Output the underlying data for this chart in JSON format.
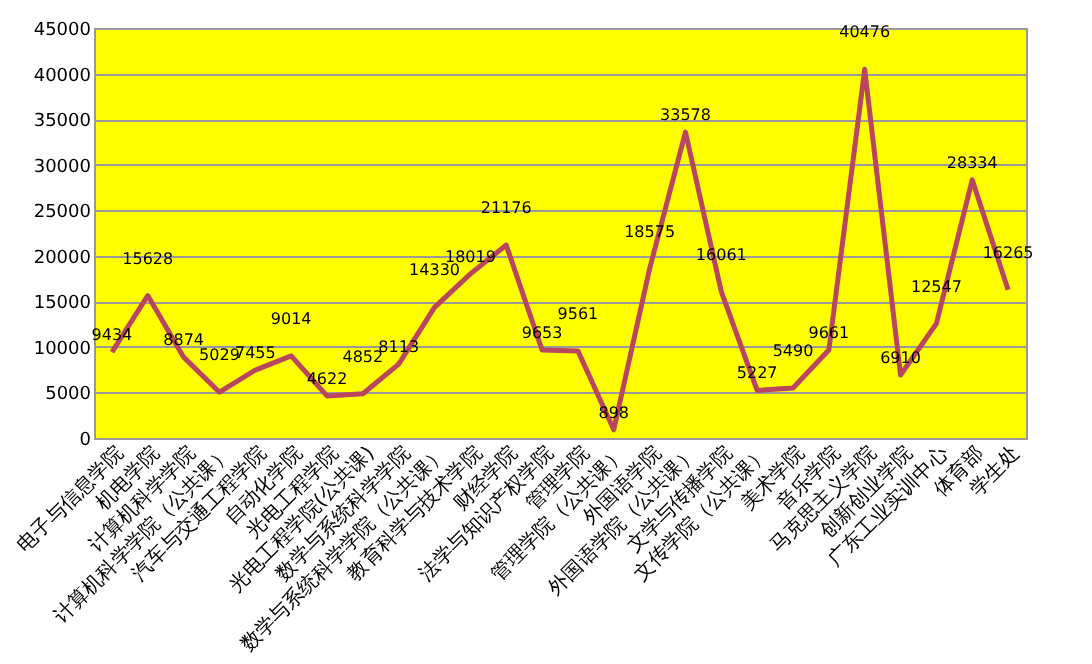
{
  "chart_data": {
    "type": "line",
    "categories": [
      "电子与信息学院",
      "机电学院",
      "计算机科学学院",
      "计算机科学学院（公共课）",
      "汽车与交通工程学院",
      "自动化学院",
      "光电工程学院",
      "光电工程学院(公共课)",
      "数学与系统科学学院",
      "数学与系统科学学院（公共课）",
      "教育科学与技术学院",
      "财经学院",
      "法学与知识产权学院",
      "管理学院",
      "管理学院（公共课）",
      "外国语学院",
      "外国语学院（公共课）",
      "文学与传播学院",
      "文传学院（公共课）",
      "美术学院",
      "音乐学院",
      "马克思主义学院",
      "创新创业学院",
      "广东工业实训中心",
      "体育部",
      "学生处"
    ],
    "series": [
      {
        "color": "#b9455e",
        "values": [
          9434,
          15628,
          8874,
          5029,
          7455,
          9014,
          4622,
          4852,
          8113,
          14330,
          18019,
          21176,
          9653,
          9561,
          898,
          18575,
          33578,
          16061,
          5227,
          5490,
          9661,
          40476,
          6910,
          12547,
          28334,
          16265
        ]
      }
    ],
    "ylim": [
      0,
      45000
    ],
    "yticks": [
      0,
      5000,
      10000,
      15000,
      20000,
      25000,
      30000,
      35000,
      40000,
      45000
    ],
    "grid": "y",
    "data_labels": true,
    "marker": "none",
    "line_style": "solid"
  }
}
